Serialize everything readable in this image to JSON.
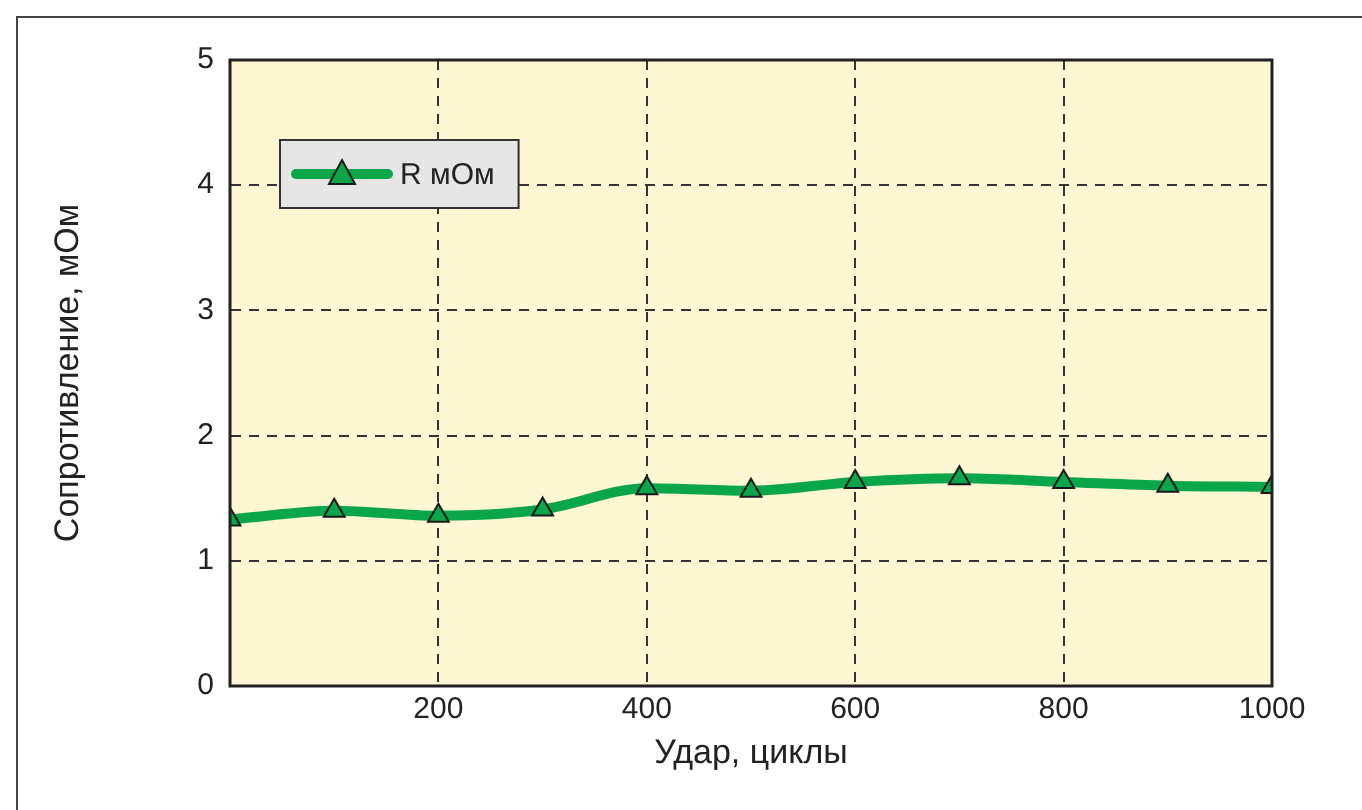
{
  "chart_data": {
    "type": "line",
    "xlabel": "Удар, циклы",
    "ylabel": "Сопротивление, мОм",
    "x": [
      0,
      100,
      200,
      300,
      400,
      500,
      600,
      700,
      800,
      900,
      1000
    ],
    "series": [
      {
        "name": "R мОм",
        "color": "#0aa64a",
        "values": [
          1.33,
          1.4,
          1.36,
          1.41,
          1.58,
          1.56,
          1.63,
          1.66,
          1.63,
          1.6,
          1.59
        ]
      }
    ],
    "xlim": [
      0,
      1000
    ],
    "xticks": [
      {
        "value": 0,
        "label": null
      },
      200,
      400,
      600,
      800,
      1000
    ],
    "ylim": [
      0,
      5
    ],
    "yticks": [
      0,
      1,
      2,
      3,
      4,
      5
    ],
    "grid": true,
    "legend": "top left",
    "marker": "triangle",
    "line_style": "solid"
  }
}
